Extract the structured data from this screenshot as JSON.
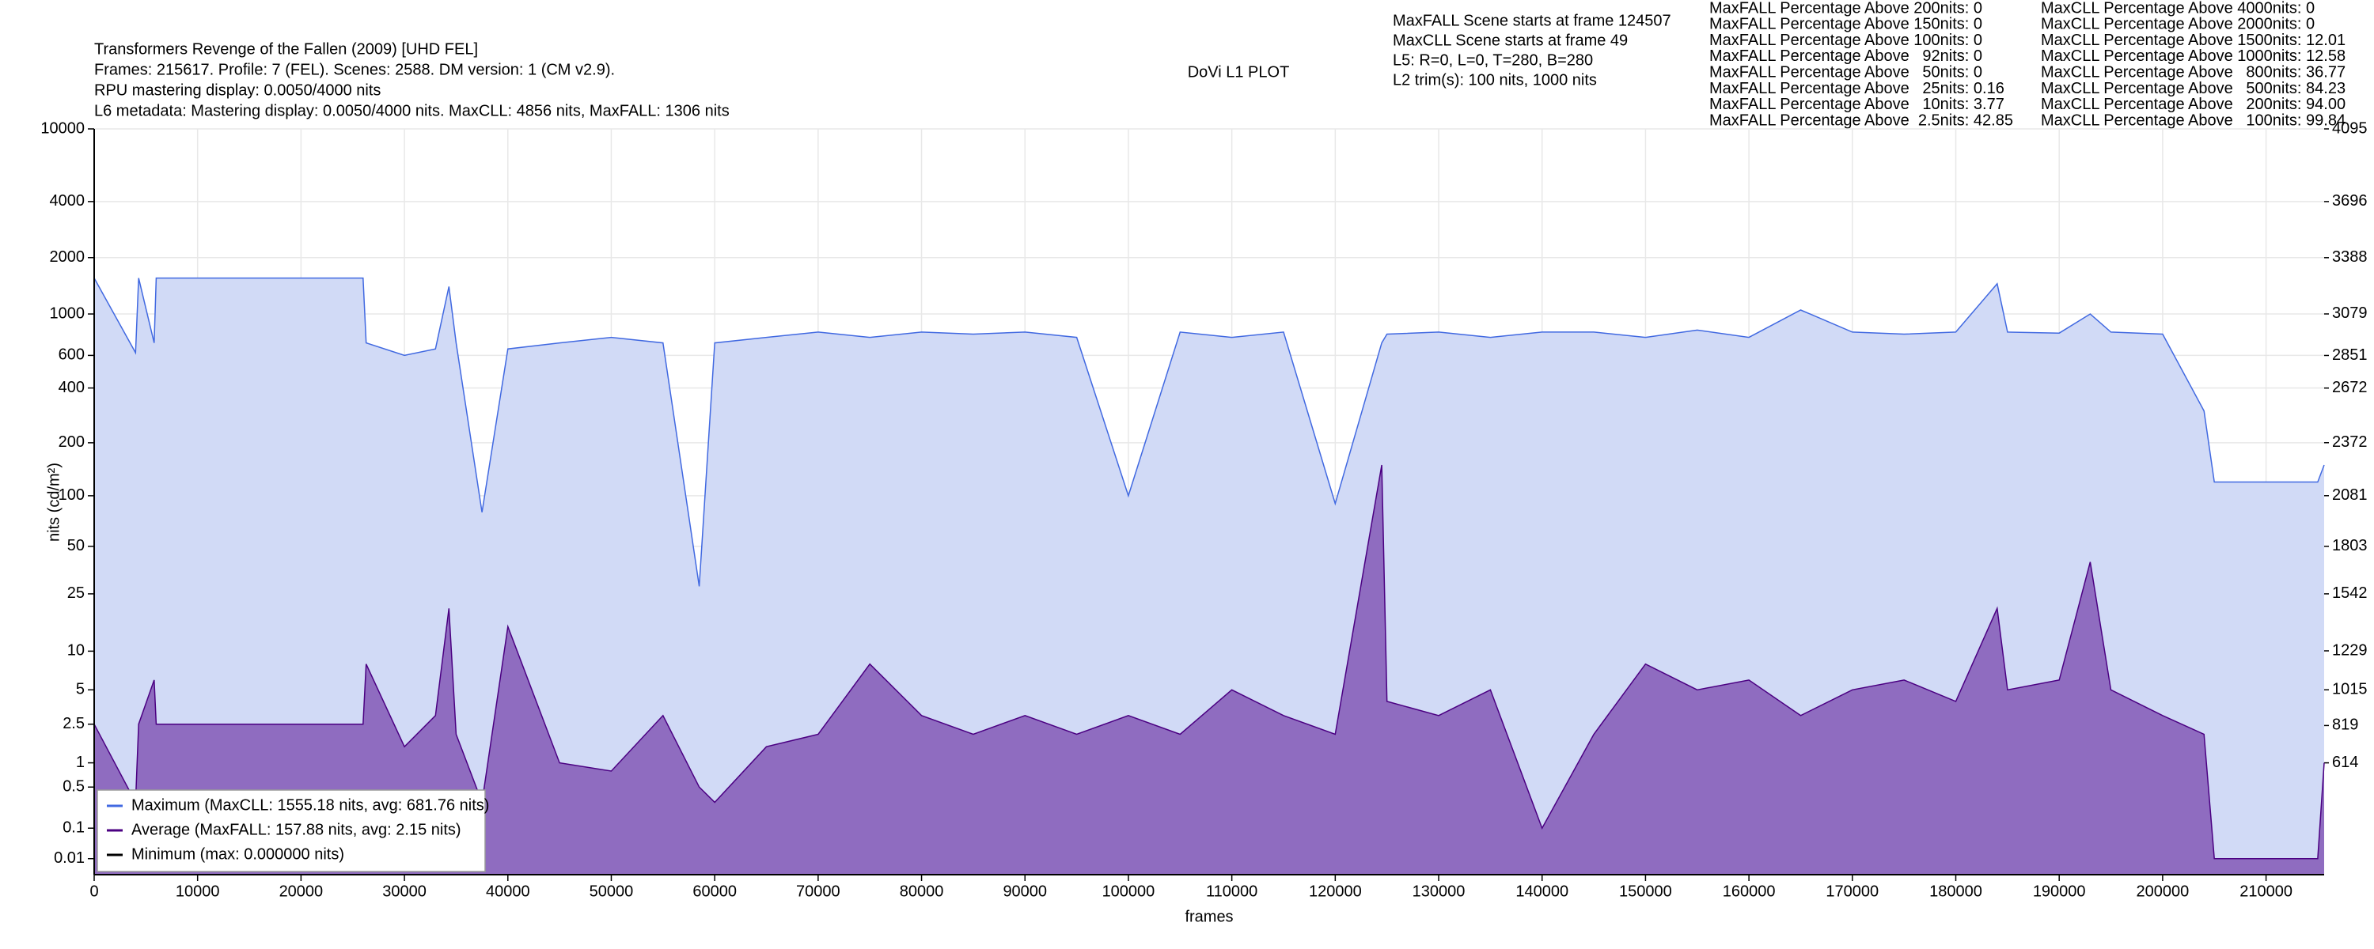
{
  "chart_data": {
    "type": "line",
    "title": "DoVi L1 PLOT",
    "header_lines": [
      "Transformers Revenge of the Fallen (2009) [UHD FEL]",
      "Frames: 215617. Profile: 7 (FEL). Scenes: 2588. DM version: 1 (CM v2.9).",
      "RPU mastering display: 0.0050/4000 nits",
      "L6 metadata: Mastering display: 0.0050/4000 nits. MaxCLL: 4856 nits, MaxFALL: 1306 nits"
    ],
    "info_lines": [
      "MaxFALL Scene starts at frame 124507",
      "MaxCLL Scene starts at frame 49",
      "L5: R=0, L=0, T=280, B=280",
      "L2 trim(s): 100 nits, 1000 nits"
    ],
    "stats_maxfall": [
      "MaxFALL Percentage Above 200nits: 0",
      "MaxFALL Percentage Above 150nits: 0",
      "MaxFALL Percentage Above 100nits: 0",
      "MaxFALL Percentage Above   92nits: 0",
      "MaxFALL Percentage Above   50nits: 0",
      "MaxFALL Percentage Above   25nits: 0.16",
      "MaxFALL Percentage Above   10nits: 3.77",
      "MaxFALL Percentage Above  2.5nits: 42.85"
    ],
    "stats_maxcll": [
      "MaxCLL Percentage Above 4000nits: 0",
      "MaxCLL Percentage Above 2000nits: 0",
      "MaxCLL Percentage Above 1500nits: 12.01",
      "MaxCLL Percentage Above 1000nits: 12.58",
      "MaxCLL Percentage Above   800nits: 36.77",
      "MaxCLL Percentage Above   500nits: 84.23",
      "MaxCLL Percentage Above   200nits: 94.00",
      "MaxCLL Percentage Above   100nits: 99.84"
    ],
    "xlabel": "frames",
    "ylabel": "nits (cd/m²)",
    "y_scale": "pq",
    "grid": true,
    "legend": "lower left",
    "x": [
      0,
      4000,
      4300,
      5800,
      6000,
      10000,
      15000,
      20000,
      26000,
      26300,
      30000,
      33000,
      34300,
      35000,
      37500,
      40000,
      45000,
      50000,
      55000,
      58500,
      60000,
      65000,
      70000,
      75000,
      80000,
      85000,
      90000,
      95000,
      100000,
      105000,
      110000,
      115000,
      120000,
      124500,
      125000,
      130000,
      135000,
      140000,
      145000,
      150000,
      155000,
      160000,
      165000,
      170000,
      175000,
      180000,
      184000,
      185000,
      190000,
      193000,
      195000,
      200000,
      204000,
      205000,
      210000,
      215000,
      215617
    ],
    "series": [
      {
        "name": "Maximum (MaxCLL: 1555.18 nits, avg: 681.76 nits)",
        "color": "#4169e1",
        "fill": "#d1daf6",
        "values": [
          1555,
          620,
          1555,
          700,
          1555,
          1555,
          1555,
          1555,
          1555,
          700,
          600,
          650,
          1400,
          700,
          80,
          650,
          700,
          750,
          700,
          28,
          700,
          750,
          800,
          750,
          800,
          780,
          800,
          750,
          100,
          800,
          750,
          800,
          90,
          700,
          780,
          800,
          750,
          800,
          800,
          750,
          820,
          750,
          1050,
          800,
          780,
          800,
          1450,
          800,
          790,
          1000,
          800,
          780,
          300,
          120,
          120,
          120,
          150
        ]
      },
      {
        "name": "Average (MaxFALL: 157.88 nits, avg: 2.15 nits)",
        "color": "#4b0082",
        "fill": "#8f6cc0",
        "values": [
          2.5,
          0.3,
          2.5,
          6,
          2.5,
          2.5,
          2.5,
          2.5,
          2.5,
          8,
          1.5,
          3,
          20,
          2,
          0.3,
          15,
          1,
          0.8,
          3,
          0.5,
          0.3,
          1.5,
          2,
          8,
          3,
          2,
          3,
          2,
          3,
          2,
          5,
          3,
          2,
          150,
          4,
          3,
          5,
          0.1,
          2,
          8,
          5,
          6,
          3,
          5,
          6,
          4,
          20,
          5,
          6,
          40,
          5,
          3,
          2,
          0.01,
          0.01,
          0.01,
          1
        ]
      },
      {
        "name": "Minimum (max: 0.000000 nits)",
        "color": "#000000",
        "values": [
          0,
          0,
          0,
          0,
          0,
          0,
          0,
          0,
          0,
          0,
          0,
          0,
          0,
          0,
          0,
          0,
          0,
          0,
          0,
          0,
          0,
          0,
          0,
          0,
          0,
          0,
          0,
          0,
          0,
          0,
          0,
          0,
          0,
          0,
          0,
          0,
          0,
          0,
          0,
          0,
          0,
          0,
          0,
          0,
          0,
          0,
          0,
          0,
          0,
          0,
          0,
          0,
          0,
          0,
          0,
          0,
          0
        ]
      }
    ],
    "xlim": [
      0,
      215617
    ],
    "xticks": [
      0,
      10000,
      20000,
      30000,
      40000,
      50000,
      60000,
      70000,
      80000,
      90000,
      100000,
      110000,
      120000,
      130000,
      140000,
      150000,
      160000,
      170000,
      180000,
      190000,
      200000,
      210000
    ],
    "ylim": [
      0,
      10000
    ],
    "yticks": [
      0.01,
      0.1,
      0.5,
      1,
      2.5,
      5,
      10,
      25,
      50,
      100,
      200,
      400,
      600,
      1000,
      2000,
      4000,
      10000
    ],
    "y2lim": [
      0,
      4095
    ],
    "y2ticks": [
      614,
      819,
      1015,
      1229,
      1542,
      1803,
      2081,
      2372,
      2672,
      2851,
      3079,
      3388,
      3696,
      4095
    ]
  }
}
